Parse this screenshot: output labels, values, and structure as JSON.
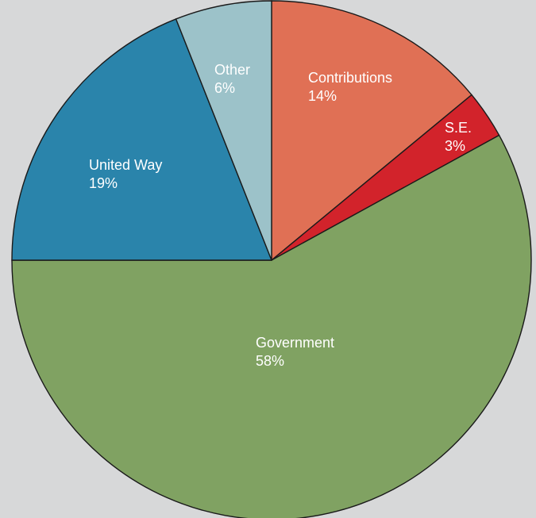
{
  "chart_data": {
    "type": "pie",
    "title": "",
    "slices": [
      {
        "name": "Contributions",
        "value": 14,
        "value_label": "14%",
        "color": "#e07055"
      },
      {
        "name": "S.E.",
        "value": 3,
        "value_label": "3%",
        "color": "#d2232b"
      },
      {
        "name": "Government",
        "value": 58,
        "value_label": "58%",
        "color": "#80a262"
      },
      {
        "name": "United Way",
        "value": 19,
        "value_label": "19%",
        "color": "#2a84ab"
      },
      {
        "name": "Other",
        "value": 6,
        "value_label": "6%",
        "color": "#9cc2c9"
      }
    ],
    "start_angle_deg": 0,
    "direction": "clockwise",
    "legend": "none"
  },
  "colors": {
    "background": "#d7d8d9",
    "stroke": "#1a1a1a",
    "label": "#ffffff"
  }
}
